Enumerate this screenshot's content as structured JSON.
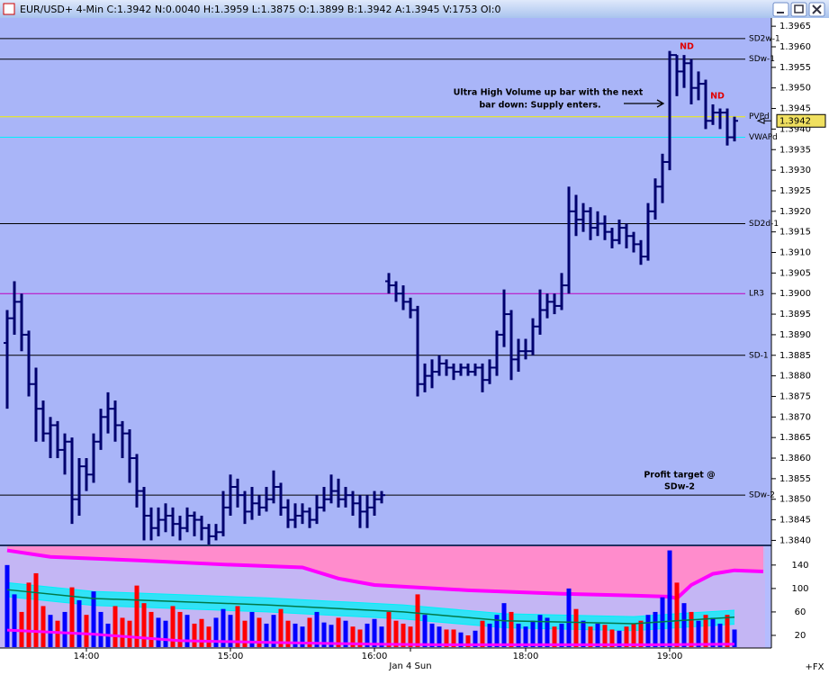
{
  "window_title": "EUR/USD+ 4-Min C:1.3942 N:0.0040 H:1.3959 L:1.3875 O:1.3899 B:1.3942 A:1.3945 V:1753 OI:0",
  "chart_data": {
    "type": "ohlc",
    "categories": [
      null,
      null,
      null,
      null,
      null,
      null,
      null,
      null,
      null,
      null,
      null,
      "14:00",
      null,
      null,
      null,
      null,
      null,
      null,
      null,
      null,
      null,
      null,
      null,
      null,
      null,
      null,
      null,
      null,
      null,
      null,
      null,
      "15:00",
      null,
      null,
      null,
      null,
      null,
      null,
      null,
      null,
      null,
      null,
      null,
      null,
      null,
      null,
      null,
      null,
      null,
      null,
      null,
      "16:00",
      null,
      null,
      null,
      null,
      "Jan 4 Sun",
      null,
      null,
      null,
      null,
      null,
      null,
      null,
      null,
      null,
      null,
      null,
      null,
      null,
      null,
      null,
      "18:00",
      null,
      null,
      null,
      null,
      null,
      null,
      null,
      null,
      null,
      null,
      null,
      null,
      null,
      null,
      null,
      null,
      null,
      null,
      null,
      "19:00",
      null,
      null,
      null,
      null,
      null,
      null,
      null,
      null,
      null
    ],
    "color": "#00006e",
    "open": [
      1.3888,
      1.3894,
      1.3898,
      1.389,
      1.3878,
      1.3872,
      1.3866,
      1.3868,
      1.3862,
      1.3864,
      1.385,
      1.3858,
      1.3856,
      1.3864,
      1.387,
      1.3872,
      1.3868,
      1.3866,
      1.386,
      1.3852,
      1.3846,
      1.3843,
      1.3845,
      1.3846,
      1.3844,
      1.3843,
      1.3846,
      1.3845,
      1.3843,
      1.3841,
      1.3842,
      1.3848,
      1.3853,
      1.3851,
      1.3847,
      1.3849,
      1.3848,
      1.385,
      1.3853,
      1.3848,
      1.3845,
      1.3846,
      1.3847,
      1.3845,
      1.3848,
      1.385,
      1.3852,
      1.385,
      1.3851,
      1.3849,
      1.3847,
      1.3848,
      1.385,
      1.3903,
      1.3902,
      1.39,
      1.3898,
      1.3896,
      1.3878,
      1.388,
      1.3881,
      1.3883,
      1.3882,
      1.3881,
      1.3882,
      1.3881,
      1.3882,
      1.3879,
      1.3882,
      1.389,
      1.3895,
      1.3884,
      1.3886,
      1.3886,
      1.3892,
      1.3896,
      1.3898,
      1.3897,
      1.3902,
      1.392,
      1.3918,
      1.392,
      1.3916,
      1.3917,
      1.3915,
      1.3913,
      1.3916,
      1.3914,
      1.3912,
      1.3909,
      1.392,
      1.3926,
      1.3932,
      1.3958,
      1.3954,
      1.3956,
      1.395,
      1.3951,
      1.3942,
      1.3944,
      1.3944,
      1.3938
    ],
    "high": [
      1.3896,
      1.3903,
      1.39,
      1.3891,
      1.3882,
      1.3874,
      1.387,
      1.3869,
      1.3866,
      1.3865,
      1.386,
      1.386,
      1.3866,
      1.3872,
      1.3876,
      1.3874,
      1.3869,
      1.3867,
      1.3861,
      1.3853,
      1.3848,
      1.3848,
      1.3849,
      1.3848,
      1.3846,
      1.3848,
      1.3847,
      1.3846,
      1.3844,
      1.3844,
      1.3852,
      1.3856,
      1.3855,
      1.3852,
      1.3853,
      1.3851,
      1.3853,
      1.3857,
      1.3854,
      1.385,
      1.3849,
      1.3849,
      1.3848,
      1.3851,
      1.3853,
      1.3856,
      1.3855,
      1.3853,
      1.3852,
      1.3851,
      1.3851,
      1.3852,
      1.3852,
      1.3905,
      1.3903,
      1.3902,
      1.3899,
      1.3897,
      1.3883,
      1.3884,
      1.3885,
      1.3884,
      1.3883,
      1.3883,
      1.3883,
      1.3883,
      1.3883,
      1.3884,
      1.3891,
      1.3901,
      1.3896,
      1.3889,
      1.3889,
      1.3894,
      1.3901,
      1.39,
      1.39,
      1.3905,
      1.3926,
      1.3924,
      1.3922,
      1.3921,
      1.392,
      1.3919,
      1.3916,
      1.3918,
      1.3917,
      1.3915,
      1.3913,
      1.3922,
      1.3928,
      1.3934,
      1.3959,
      1.3958,
      1.3958,
      1.3957,
      1.3954,
      1.3952,
      1.3946,
      1.3945,
      1.3945,
      1.3943
    ],
    "low": [
      1.3872,
      1.389,
      1.3886,
      1.3875,
      1.3864,
      1.3864,
      1.386,
      1.386,
      1.3856,
      1.3844,
      1.3846,
      1.3852,
      1.3854,
      1.3862,
      1.3866,
      1.3864,
      1.386,
      1.3854,
      1.3848,
      1.384,
      1.384,
      1.3841,
      1.3842,
      1.3841,
      1.384,
      1.3842,
      1.3841,
      1.384,
      1.3839,
      1.384,
      1.3841,
      1.3846,
      1.3848,
      1.3844,
      1.3845,
      1.3846,
      1.3847,
      1.3849,
      1.3846,
      1.3843,
      1.3843,
      1.3844,
      1.3843,
      1.3844,
      1.3847,
      1.3849,
      1.3848,
      1.3848,
      1.3846,
      1.3843,
      1.3843,
      1.3846,
      1.3849,
      1.39,
      1.3898,
      1.3896,
      1.3894,
      1.3875,
      1.3876,
      1.3877,
      1.388,
      1.388,
      1.3879,
      1.388,
      1.388,
      1.388,
      1.3876,
      1.3878,
      1.388,
      1.3887,
      1.3879,
      1.3881,
      1.3884,
      1.3885,
      1.389,
      1.3894,
      1.3895,
      1.3896,
      1.39,
      1.3914,
      1.3915,
      1.3913,
      1.3914,
      1.3913,
      1.3911,
      1.3912,
      1.3911,
      1.391,
      1.3907,
      1.3908,
      1.3918,
      1.3922,
      1.393,
      1.3948,
      1.395,
      1.3946,
      1.3947,
      1.394,
      1.3941,
      1.394,
      1.3936,
      1.3937
    ],
    "close": [
      1.3894,
      1.3898,
      1.389,
      1.3878,
      1.3872,
      1.3866,
      1.3868,
      1.3862,
      1.3864,
      1.385,
      1.3858,
      1.3856,
      1.3864,
      1.387,
      1.3872,
      1.3868,
      1.3866,
      1.386,
      1.3852,
      1.3846,
      1.3843,
      1.3845,
      1.3846,
      1.3844,
      1.3843,
      1.3846,
      1.3845,
      1.3843,
      1.3841,
      1.3842,
      1.3848,
      1.3853,
      1.3851,
      1.3847,
      1.3849,
      1.3848,
      1.385,
      1.3853,
      1.3848,
      1.3845,
      1.3846,
      1.3847,
      1.3845,
      1.3848,
      1.385,
      1.3852,
      1.385,
      1.3851,
      1.3849,
      1.3847,
      1.3848,
      1.385,
      1.3851,
      1.3902,
      1.39,
      1.3898,
      1.3896,
      1.3878,
      1.388,
      1.3881,
      1.3883,
      1.3882,
      1.3881,
      1.3882,
      1.3881,
      1.3882,
      1.3879,
      1.3882,
      1.389,
      1.3895,
      1.3884,
      1.3886,
      1.3886,
      1.3892,
      1.3896,
      1.3898,
      1.3897,
      1.3902,
      1.392,
      1.3918,
      1.392,
      1.3916,
      1.3917,
      1.3915,
      1.3913,
      1.3916,
      1.3914,
      1.3912,
      1.3909,
      1.392,
      1.3926,
      1.3932,
      1.3958,
      1.3954,
      1.3956,
      1.395,
      1.3951,
      1.3942,
      1.3944,
      1.3944,
      1.3938,
      1.3942
    ],
    "ylim": [
      1.3839,
      1.3967
    ],
    "yticks": [
      {
        "value": 1.384,
        "label": "1.3840"
      },
      1.3845,
      {
        "value": 1.385,
        "label": "1.3850"
      },
      1.3855,
      {
        "value": 1.386,
        "label": "1.3860"
      },
      1.3865,
      {
        "value": 1.387,
        "label": "1.3870"
      },
      1.3875,
      {
        "value": 1.388,
        "label": "1.3880"
      },
      1.3885,
      {
        "value": 1.389,
        "label": "1.3890"
      },
      1.3895,
      {
        "value": 1.39,
        "label": "1.3900"
      },
      1.3905,
      {
        "value": 1.391,
        "label": "1.3910"
      },
      1.3915,
      {
        "value": 1.392,
        "label": "1.3920"
      },
      1.3925,
      {
        "value": 1.393,
        "label": "1.3930"
      },
      1.3935,
      {
        "value": 1.394,
        "label": "1.3940"
      },
      1.3945,
      {
        "value": 1.395,
        "label": "1.3950"
      },
      1.3955,
      {
        "value": 1.396,
        "label": "1.3960"
      },
      1.3965
    ],
    "last_price": 1.3942,
    "last_price_color": "#f0e060",
    "levels": [
      {
        "name": "SD2w-1",
        "value": 1.3962,
        "color": "#000000"
      },
      {
        "name": "SDw-1",
        "value": 1.3957,
        "color": "#000000"
      },
      {
        "name": "PVPd",
        "value": 1.3943,
        "color": "#f4f000"
      },
      {
        "name": "VWAPd",
        "value": 1.3938,
        "color": "#00f0ff"
      },
      {
        "name": "SD2d-1",
        "value": 1.3917,
        "color": "#000000"
      },
      {
        "name": "LR3",
        "value": 1.39,
        "color": "#c000c0"
      },
      {
        "name": "SD-1",
        "value": 1.3885,
        "color": "#000000"
      },
      {
        "name": "SDw-2",
        "value": 1.3851,
        "color": "#000000"
      }
    ],
    "volume": {
      "up_color": "#0000ff",
      "down_color": "#ff0000",
      "values": [
        140,
        90,
        60,
        110,
        126,
        70,
        55,
        45,
        60,
        102,
        80,
        55,
        95,
        60,
        40,
        70,
        50,
        45,
        105,
        75,
        60,
        50,
        45,
        70,
        60,
        55,
        40,
        48,
        35,
        50,
        65,
        55,
        70,
        45,
        60,
        50,
        40,
        55,
        65,
        45,
        40,
        35,
        50,
        60,
        42,
        38,
        50,
        45,
        35,
        30,
        40,
        48,
        35,
        60,
        45,
        40,
        35,
        90,
        55,
        40,
        35,
        30,
        30,
        25,
        20,
        28,
        45,
        40,
        55,
        75,
        60,
        40,
        35,
        45,
        55,
        50,
        35,
        40,
        100,
        65,
        45,
        35,
        40,
        38,
        30,
        28,
        35,
        40,
        45,
        55,
        60,
        85,
        165,
        110,
        75,
        60,
        45,
        55,
        50,
        40,
        55,
        30
      ]
    },
    "y2lim": [
      0,
      172
    ],
    "y2ticks": [
      20,
      60,
      100,
      140
    ],
    "volume_overlays": [
      {
        "kind": "ceiling-fill",
        "color": "#ff00ff",
        "fill": "#ff8ccc",
        "x": [
          0,
          6,
          18,
          30,
          41,
          46,
          51,
          64,
          77,
          87,
          92,
          93,
          95,
          98,
          101,
          105
        ],
        "values": [
          165,
          154,
          148,
          141,
          136,
          117,
          106,
          97,
          91,
          88,
          86,
          83,
          106,
          125,
          131,
          129
        ]
      },
      {
        "kind": "band",
        "color": "#00f0f8",
        "x": [
          0,
          12,
          36,
          55,
          69,
          87,
          93,
          101
        ],
        "upper": [
          110,
          95,
          84,
          72,
          57,
          52,
          57,
          63
        ],
        "lower": [
          86,
          71,
          60,
          48,
          33,
          28,
          33,
          39
        ]
      },
      {
        "kind": "line",
        "color": "#007848",
        "x": [
          0,
          12,
          36,
          55,
          69,
          87,
          93,
          101
        ],
        "values": [
          98,
          83,
          72,
          60,
          45,
          40,
          45,
          51
        ]
      },
      {
        "kind": "line",
        "color": "#ff00ff",
        "x": [
          0,
          12,
          24,
          36,
          51,
          60,
          75,
          90,
          101
        ],
        "values": [
          29,
          22,
          11,
          8,
          5,
          4,
          4,
          4,
          5
        ]
      }
    ],
    "annotations": {
      "volume_note": [
        "Ultra High Volume up bar with the next",
        "bar down: Supply enters."
      ],
      "target_note": [
        "Profit target @",
        "SDw-2"
      ],
      "nd": [
        "ND",
        "ND"
      ]
    },
    "footer_tag": "+FX"
  }
}
